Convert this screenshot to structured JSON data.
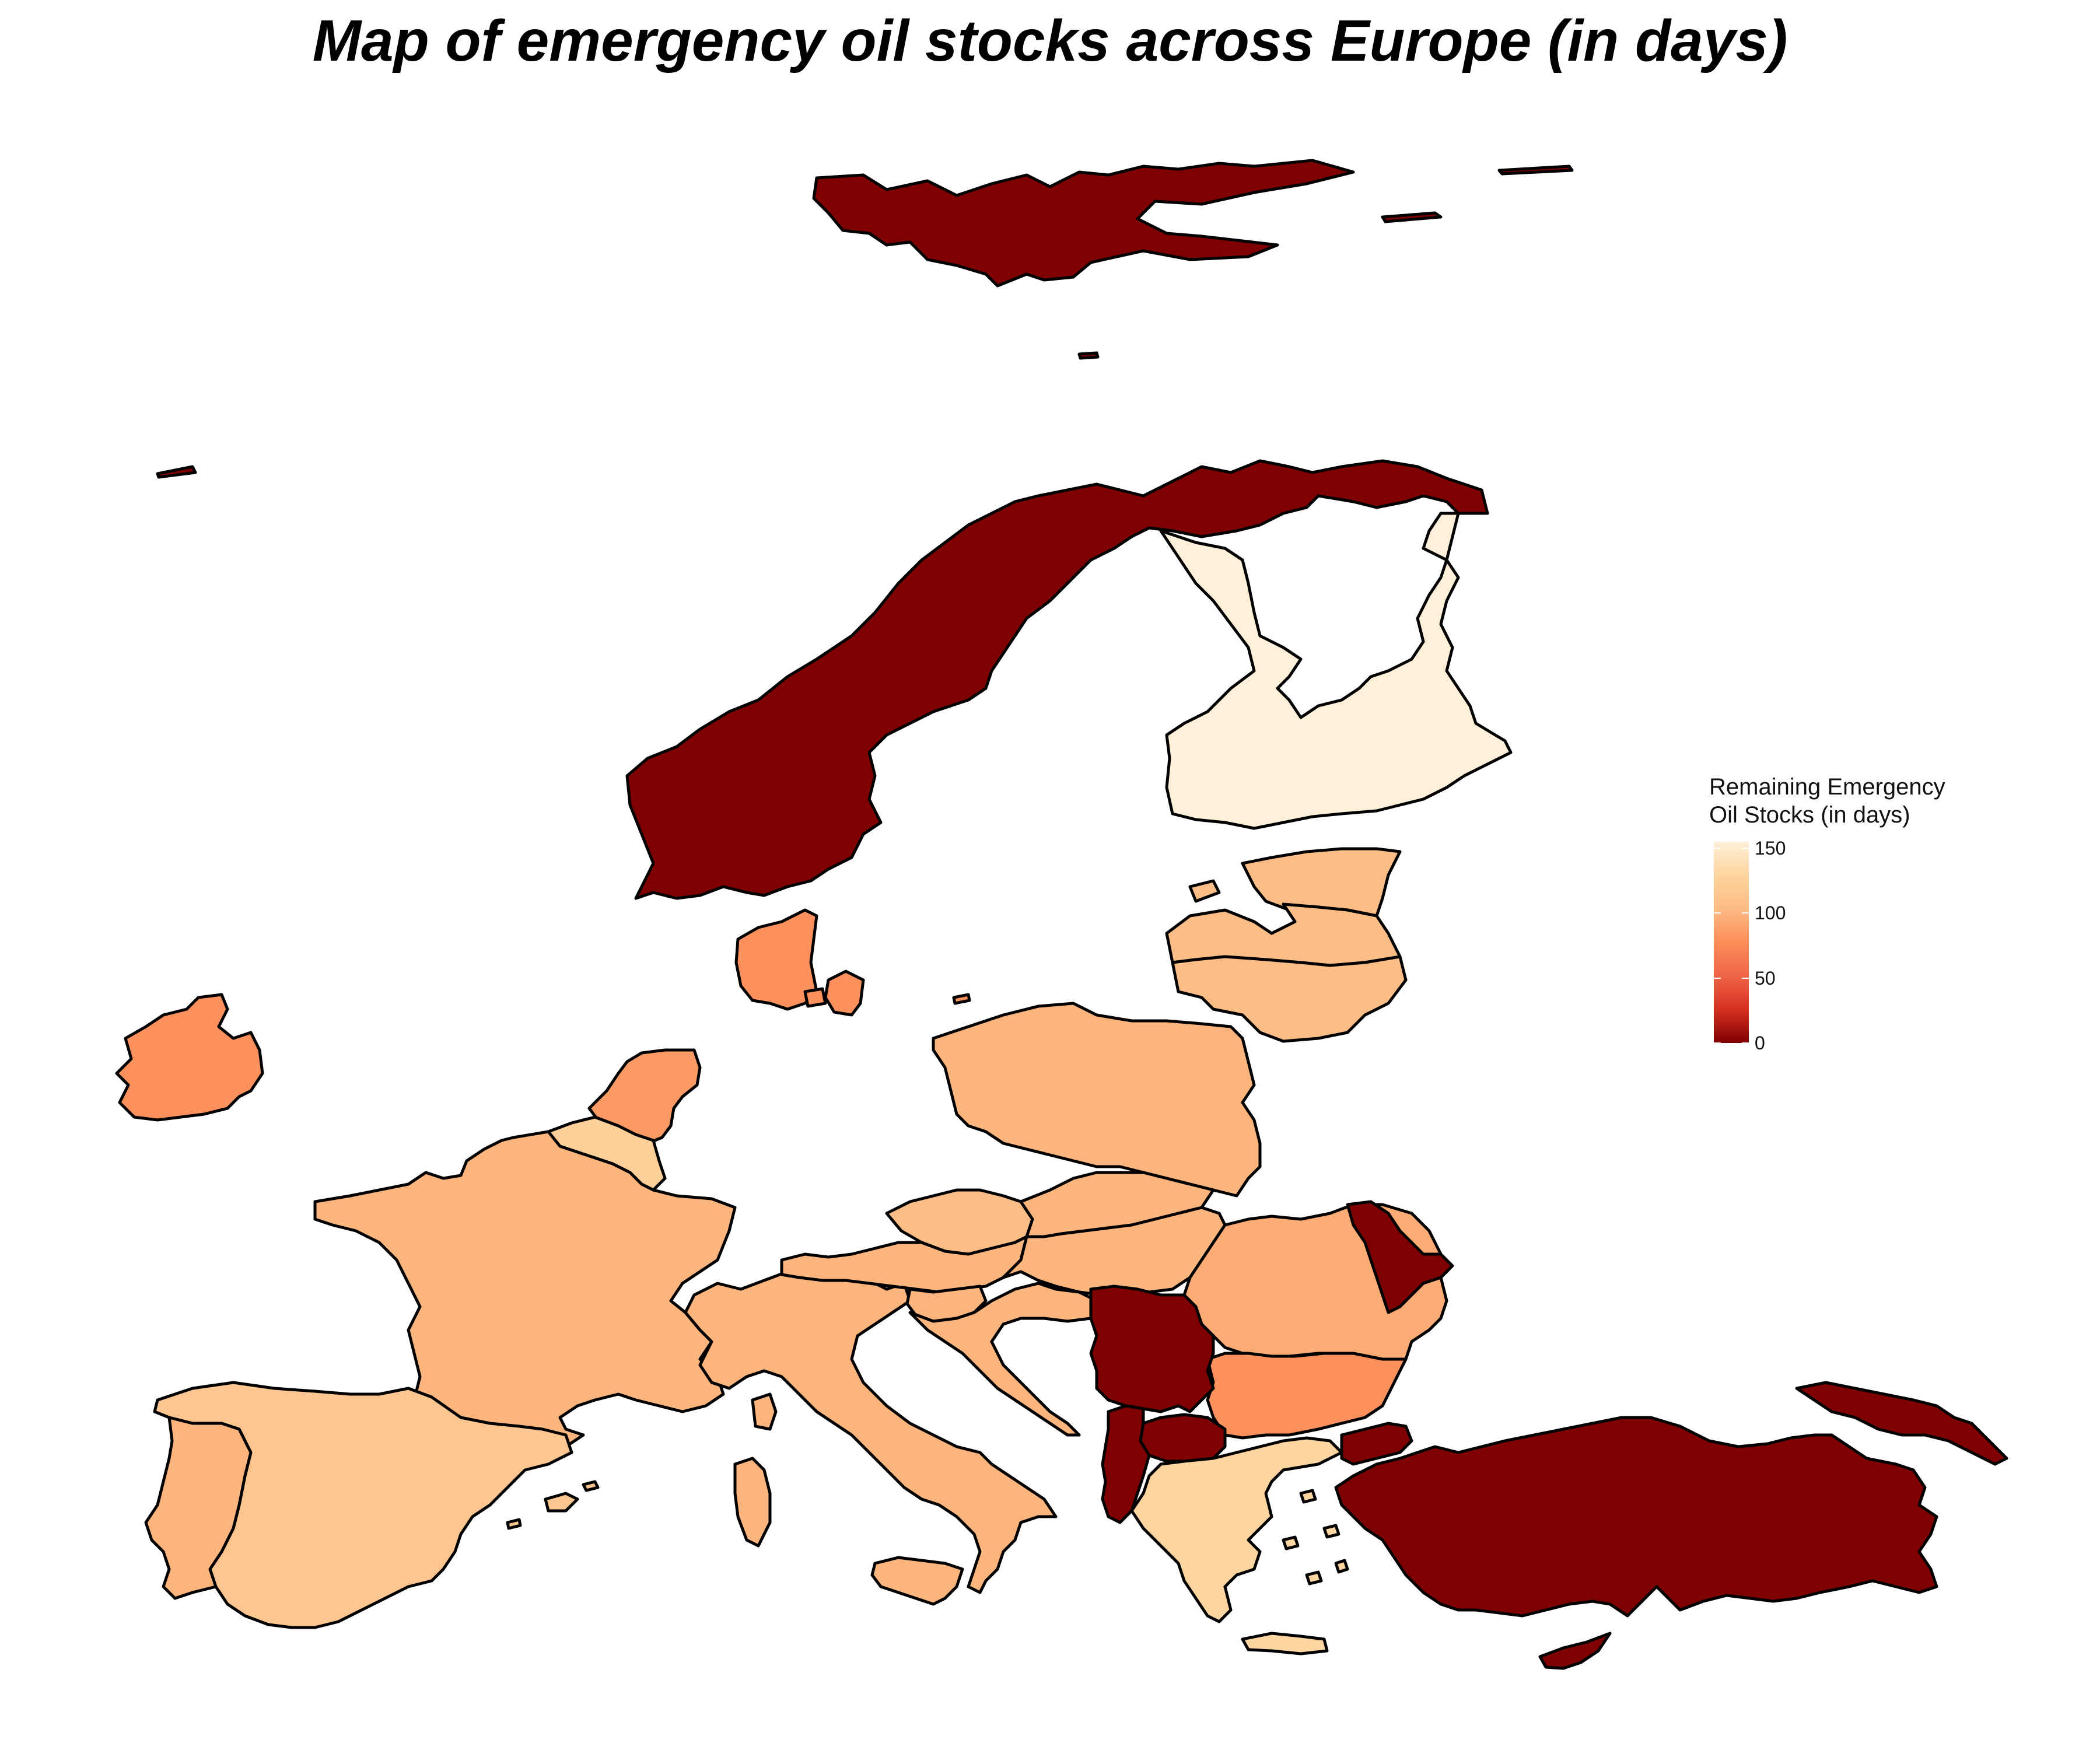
{
  "title": "Map of emergency oil stocks across Europe (in days)",
  "legend": {
    "title": "Remaining Emergency\nOil Stocks (in days)",
    "ticks": [
      {
        "label": "150",
        "value": 150
      },
      {
        "label": "100",
        "value": 100
      },
      {
        "label": "50",
        "value": 50
      },
      {
        "label": "0",
        "value": 0
      }
    ],
    "range": [
      0,
      155
    ],
    "colors": [
      "#7f0000",
      "#d7301f",
      "#ef6548",
      "#fc8d59",
      "#fdbb84",
      "#fdd49e",
      "#fef0d9"
    ]
  },
  "chart_data": {
    "type": "choropleth",
    "title": "Map of emergency oil stocks across Europe (in days)",
    "legend_title": "Remaining Emergency Oil Stocks (in days)",
    "legend_placement": "right",
    "scale_range": [
      0,
      155
    ],
    "regions": [
      {
        "name": "Svalbard",
        "value": 0
      },
      {
        "name": "Norway",
        "value": 0
      },
      {
        "name": "Finland",
        "value": 155
      },
      {
        "name": "Estonia",
        "value": 105
      },
      {
        "name": "Latvia",
        "value": 105
      },
      {
        "name": "Lithuania",
        "value": 105
      },
      {
        "name": "Denmark",
        "value": 80
      },
      {
        "name": "Ireland",
        "value": 80
      },
      {
        "name": "Netherlands",
        "value": 85
      },
      {
        "name": "Belgium",
        "value": 125
      },
      {
        "name": "France",
        "value": 100
      },
      {
        "name": "Spain",
        "value": 115
      },
      {
        "name": "Portugal",
        "value": 100
      },
      {
        "name": "Poland",
        "value": 100
      },
      {
        "name": "Czechia",
        "value": 105
      },
      {
        "name": "Slovakia",
        "value": 100
      },
      {
        "name": "Austria",
        "value": 100
      },
      {
        "name": "Slovenia",
        "value": 100
      },
      {
        "name": "Hungary",
        "value": 100
      },
      {
        "name": "Croatia",
        "value": 100
      },
      {
        "name": "Italy",
        "value": 100
      },
      {
        "name": "Romania",
        "value": 95
      },
      {
        "name": "Bulgaria",
        "value": 80
      },
      {
        "name": "Greece",
        "value": 130
      },
      {
        "name": "Moldova",
        "value": 0
      },
      {
        "name": "Serbia",
        "value": 0
      },
      {
        "name": "Albania",
        "value": 0
      },
      {
        "name": "North Macedonia",
        "value": 0
      },
      {
        "name": "Turkey",
        "value": 0
      },
      {
        "name": "Cyprus",
        "value": 0
      }
    ]
  }
}
